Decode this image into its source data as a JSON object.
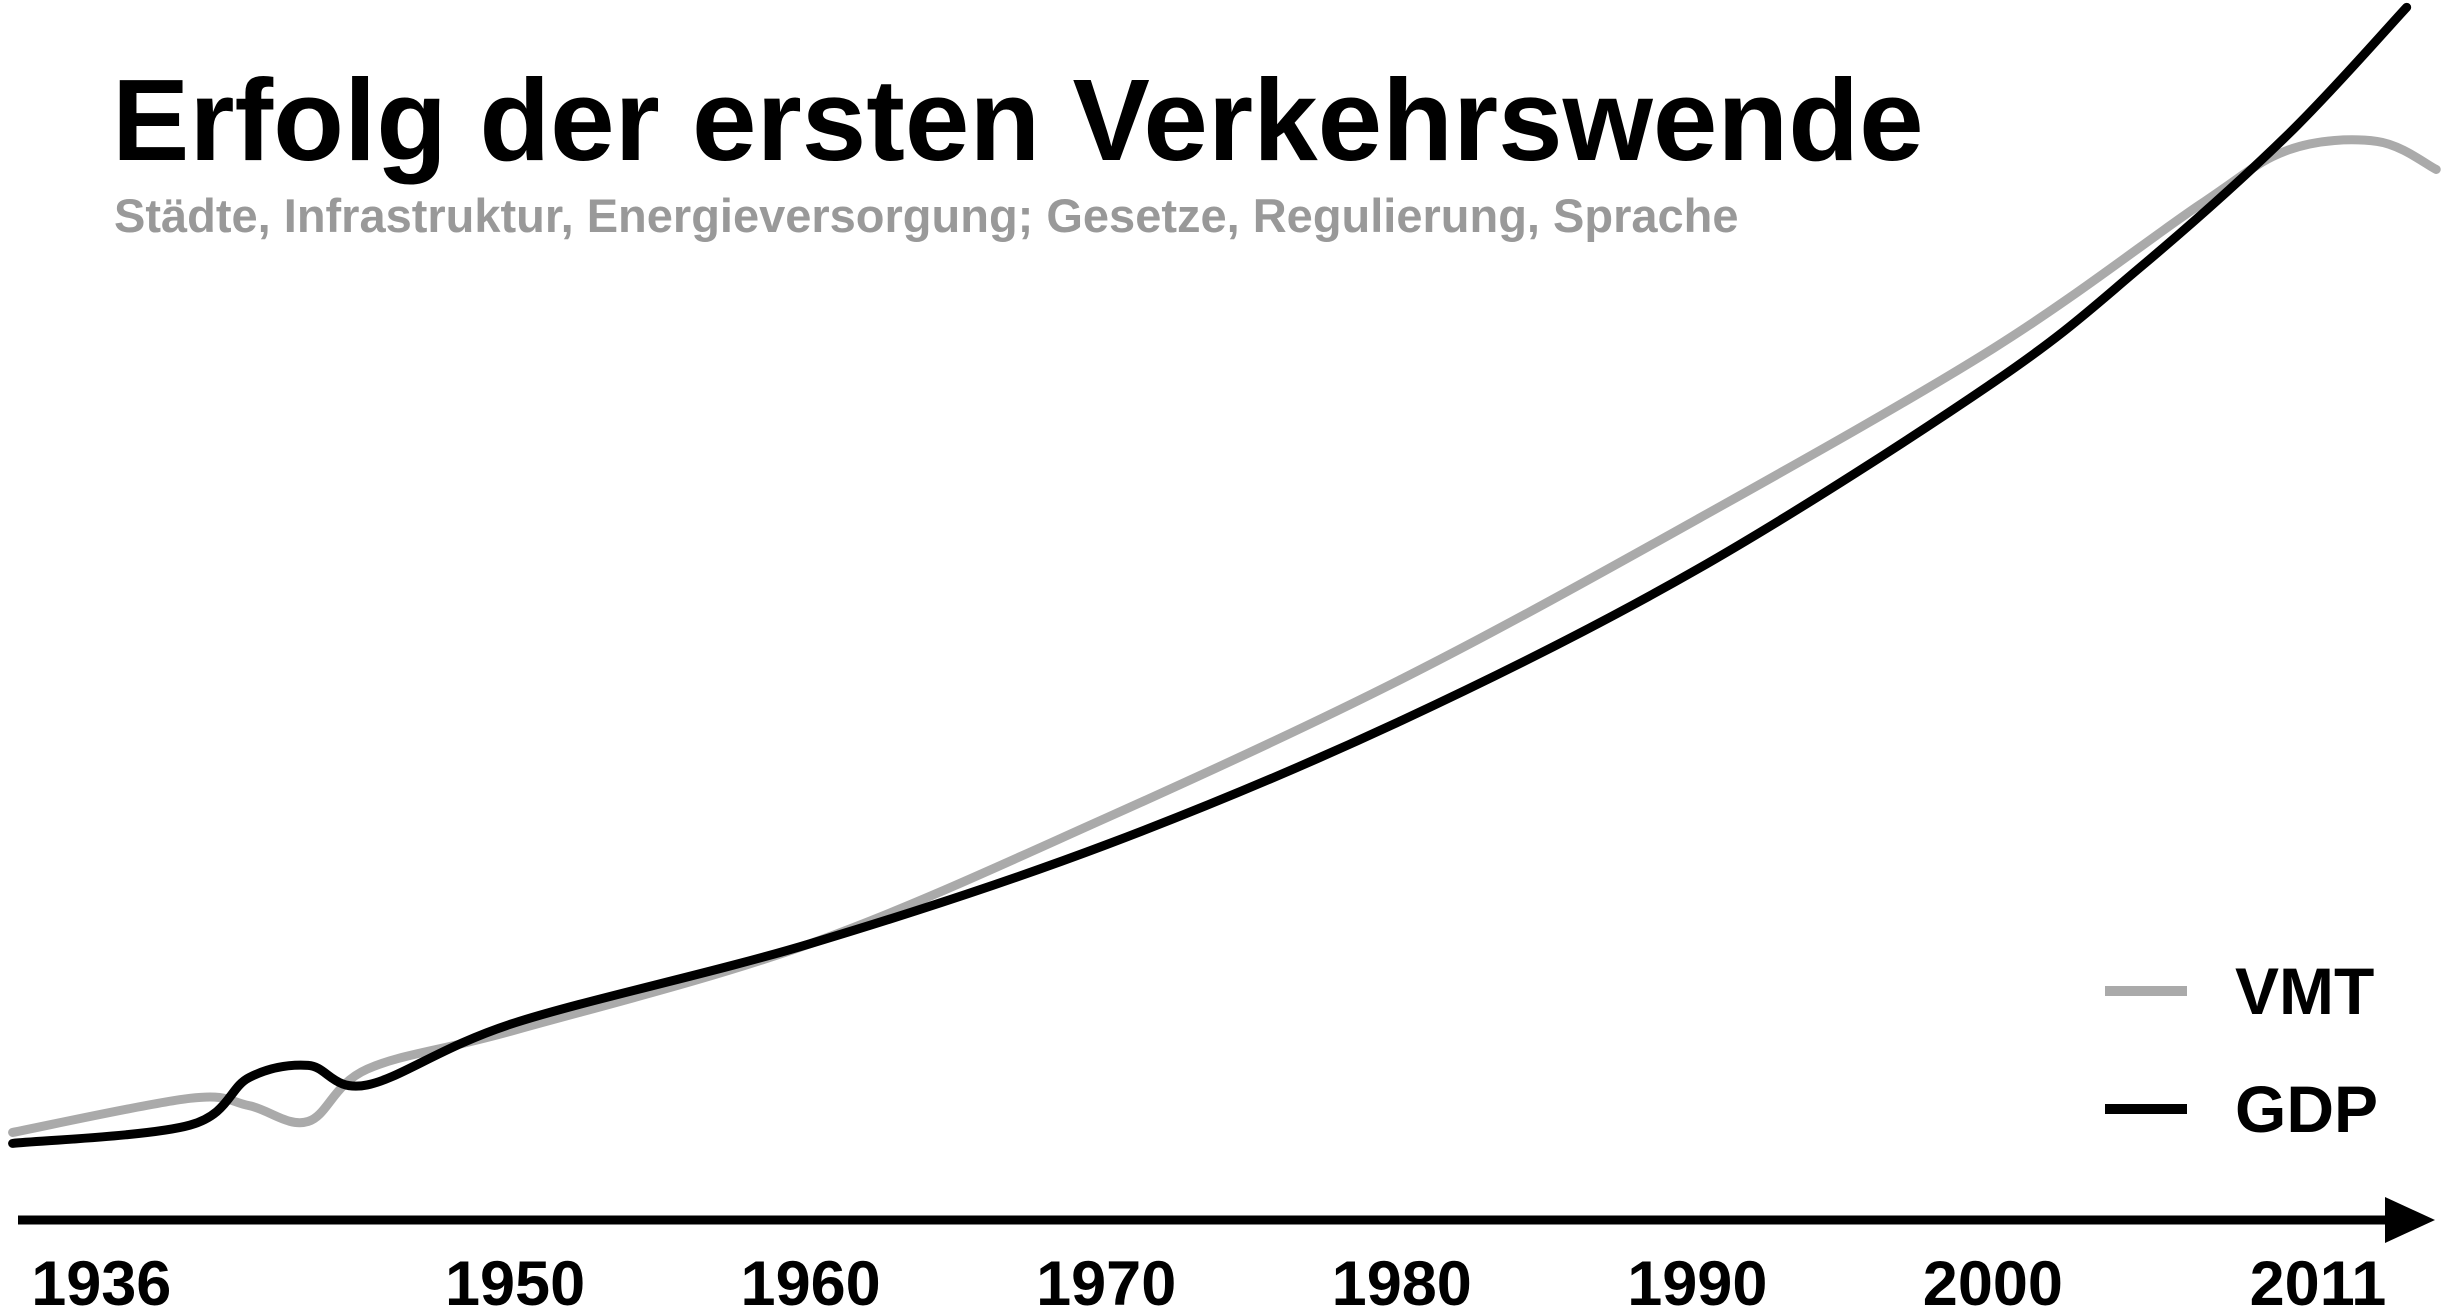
{
  "chart_data": {
    "type": "line",
    "title": "Erfolg der ersten Verkehrswende",
    "subtitle": "Städte, Infrastruktur, Energieversorgung; Gesetze, Regulierung, Sprache",
    "series": [
      {
        "name": "VMT",
        "color": "#aaaaaa",
        "x": [
          1933,
          1939,
          1941,
          1943,
          1945,
          1950,
          1960,
          1970,
          1980,
          1990,
          2000,
          2007,
          2010,
          2013,
          2015
        ],
        "values": [
          7.1,
          9.9,
          9.3,
          8.0,
          12.3,
          15.5,
          22.6,
          32.9,
          44.3,
          57.4,
          71.4,
          83.2,
          87.7,
          88.4,
          86.1
        ]
      },
      {
        "name": "GDP",
        "color": "#000000",
        "x": [
          1933,
          1939,
          1941,
          1943,
          1945,
          1950,
          1960,
          1970,
          1980,
          1990,
          2000,
          2005,
          2010,
          2014
        ],
        "values": [
          6.2,
          7.7,
          11.6,
          12.6,
          11.0,
          16.1,
          22.6,
          30.7,
          40.9,
          53.3,
          68.6,
          78.1,
          89.0,
          99.4
        ]
      }
    ],
    "xlim": [
      1933,
      2015.5
    ],
    "xticks": [
      1936,
      1950,
      1960,
      1970,
      1980,
      1990,
      2000,
      2011
    ],
    "ylim": [
      0,
      100
    ],
    "legend": "lower right"
  }
}
